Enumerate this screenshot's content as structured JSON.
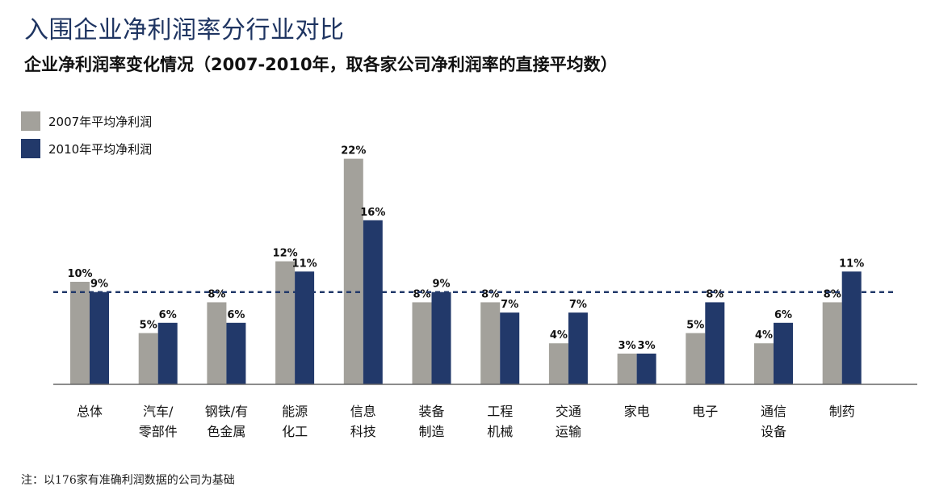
{
  "header": {
    "title": "入围企业净利润率分行业对比",
    "subtitle": "企业净利润率变化情况（2007-2010年，取各家公司净利润率的直接平均数）"
  },
  "footer": {
    "note": "注：以176家有准确利润数据的公司为基础"
  },
  "colors": {
    "series2007": "#a3a19b",
    "series2010": "#22396a",
    "avg_line": "#22396a"
  },
  "chart_data": {
    "type": "bar",
    "title": "企业净利润率变化情况（2007-2010年，取各家公司净利润率的直接平均数）",
    "categories": [
      "总体",
      "汽车/零部件",
      "钢铁/有色金属",
      "能源化工",
      "信息科技",
      "装备制造",
      "工程机械",
      "交通运输",
      "家电",
      "电子",
      "通信设备",
      "制药"
    ],
    "category_lines": [
      [
        "总体"
      ],
      [
        "汽车/",
        "零部件"
      ],
      [
        "钢铁/有",
        "色金属"
      ],
      [
        "能源",
        "化工"
      ],
      [
        "信息",
        "科技"
      ],
      [
        "装备",
        "制造"
      ],
      [
        "工程",
        "机械"
      ],
      [
        "交通",
        "运输"
      ],
      [
        "家电"
      ],
      [
        "电子"
      ],
      [
        "通信",
        "设备"
      ],
      [
        "制药"
      ]
    ],
    "series": [
      {
        "name": "2007年平均净利润",
        "values": [
          10,
          5,
          8,
          12,
          22,
          8,
          8,
          4,
          3,
          5,
          4,
          8
        ]
      },
      {
        "name": "2010年平均净利润",
        "values": [
          9,
          6,
          6,
          11,
          16,
          9,
          7,
          7,
          3,
          8,
          6,
          11
        ]
      }
    ],
    "value_labels": [
      [
        "10%",
        "5%",
        "8%",
        "12%",
        "22%",
        "8%",
        "8%",
        "4%",
        "3%",
        "5%",
        "4%",
        "8%"
      ],
      [
        "9%",
        "6%",
        "6%",
        "11%",
        "16%",
        "9%",
        "7%",
        "7%",
        "3%",
        "8%",
        "6%",
        "11%"
      ]
    ],
    "reference_line": {
      "value": 9,
      "style": "dashed"
    },
    "ylim": [
      0,
      22
    ],
    "legend_position": "top-left",
    "grid": false
  }
}
